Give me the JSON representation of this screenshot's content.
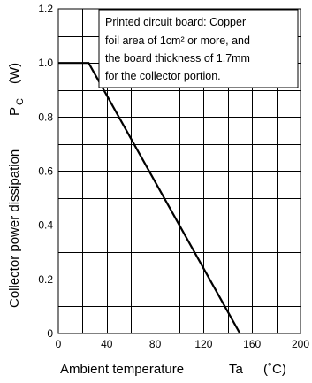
{
  "chart_data": {
    "type": "line",
    "xlabel": "Ambient temperature",
    "xlabel_symbol": "Ta",
    "xlabel_unit": "(˚C)",
    "ylabel": "Collector power dissipation",
    "ylabel_symbol": "P",
    "ylabel_symbol_sub": "C",
    "ylabel_unit": "(W)",
    "xlim": [
      0,
      200
    ],
    "ylim": [
      0,
      1.2
    ],
    "x_ticks": [
      0,
      40,
      80,
      120,
      160,
      200
    ],
    "x_tick_labels": [
      "0",
      "40",
      "80",
      "120",
      "160",
      "200"
    ],
    "y_ticks": [
      0,
      0.2,
      0.4,
      0.6,
      0.8,
      1.0,
      1.2
    ],
    "y_tick_labels": [
      "0",
      "0.2",
      "0.4",
      "0.6",
      "0.8",
      "1.0",
      "1.2"
    ],
    "grid": true,
    "grid_x_step": 20,
    "grid_y_step": 0.1,
    "series": [
      {
        "x": [
          0,
          25,
          150
        ],
        "y": [
          1.0,
          1.0,
          0
        ]
      }
    ],
    "annotation": {
      "lines": [
        "Printed circuit board: Copper",
        "foil area of 1cm² or more, and",
        "the board thickness of 1.7mm",
        "for the collector portion."
      ]
    }
  }
}
